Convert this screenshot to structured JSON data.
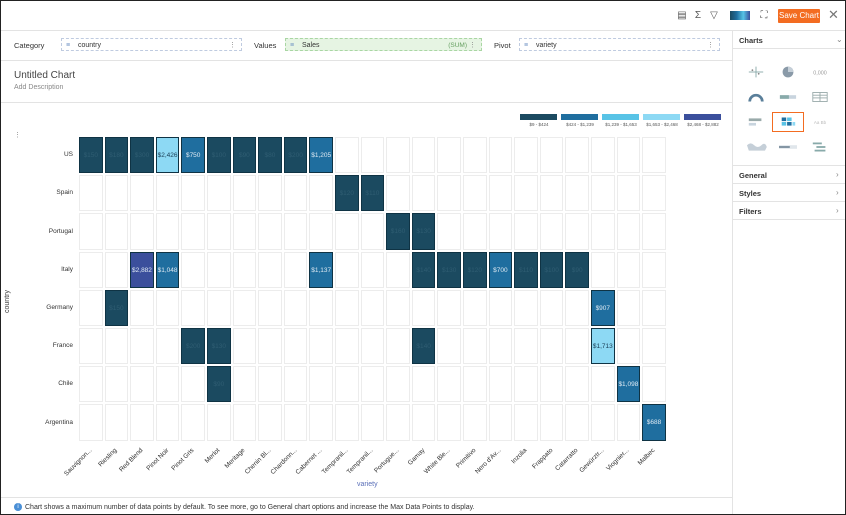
{
  "toolbar": {
    "save_label": "Save Chart",
    "icons": [
      "table-icon",
      "sum-icon",
      "filter-icon",
      "color-palette-icon",
      "fullscreen-icon",
      "close-icon"
    ]
  },
  "fields": {
    "category_label": "Category",
    "category_value": "country",
    "values_label": "Values",
    "values_value": "Sales",
    "values_agg": "(SUM)",
    "pivot_label": "Pivot",
    "pivot_value": "variety"
  },
  "chart_header": {
    "title": "Untitled Chart",
    "description": "Add Description"
  },
  "legend": [
    {
      "range": "$9 - $424",
      "color": "#1b4a60"
    },
    {
      "range": "$424 - $1,239",
      "color": "#1f6e9f"
    },
    {
      "range": "$1,239 - $1,653",
      "color": "#58c3e6"
    },
    {
      "range": "$1,653 - $2,468",
      "color": "#8dd9f4"
    },
    {
      "range": "$2,468 - $2,882",
      "color": "#3b4f9c"
    }
  ],
  "chart_data": {
    "type": "heatmap",
    "y_axis_title": "country",
    "x_axis_title": "variety",
    "rows": [
      "US",
      "Spain",
      "Portugal",
      "Italy",
      "Germany",
      "France",
      "Chile",
      "Argentina"
    ],
    "columns": [
      "Sauvignon...",
      "Riesling",
      "Red Blend",
      "Pinot Noir",
      "Pinot Gris",
      "Merlot",
      "Meritage",
      "Chenin Bl...",
      "Chardonn...",
      "Cabernet ...",
      "Tempranil...",
      "Tempranil...",
      "Portugue...",
      "Gamay",
      "White Ble...",
      "Primitivo",
      "Nero d'Av...",
      "Inzolia",
      "Frappato",
      "Catarratto",
      "Gewürztr...",
      "Viognier...",
      "Malbec"
    ],
    "cells": [
      {
        "row": 0,
        "col": 0,
        "value": 150,
        "label": "$150"
      },
      {
        "row": 0,
        "col": 1,
        "value": 180,
        "label": "$180"
      },
      {
        "row": 0,
        "col": 2,
        "value": 300,
        "label": "$300"
      },
      {
        "row": 0,
        "col": 3,
        "value": 2426,
        "label": "$2,426"
      },
      {
        "row": 0,
        "col": 4,
        "value": 750,
        "label": "$750"
      },
      {
        "row": 0,
        "col": 5,
        "value": 100,
        "label": "$100"
      },
      {
        "row": 0,
        "col": 6,
        "value": 90,
        "label": "$90"
      },
      {
        "row": 0,
        "col": 7,
        "value": 80,
        "label": "$80"
      },
      {
        "row": 0,
        "col": 8,
        "value": 200,
        "label": "$200"
      },
      {
        "row": 0,
        "col": 9,
        "value": 1205,
        "label": "$1,205"
      },
      {
        "row": 1,
        "col": 10,
        "value": 120,
        "label": "$120"
      },
      {
        "row": 1,
        "col": 11,
        "value": 110,
        "label": "$110"
      },
      {
        "row": 2,
        "col": 12,
        "value": 160,
        "label": "$160"
      },
      {
        "row": 2,
        "col": 13,
        "value": 130,
        "label": "$130"
      },
      {
        "row": 3,
        "col": 2,
        "value": 2882,
        "label": "$2,882"
      },
      {
        "row": 3,
        "col": 3,
        "value": 1048,
        "label": "$1,048"
      },
      {
        "row": 3,
        "col": 9,
        "value": 1137,
        "label": "$1,137"
      },
      {
        "row": 3,
        "col": 13,
        "value": 140,
        "label": "$140"
      },
      {
        "row": 3,
        "col": 14,
        "value": 130,
        "label": "$130"
      },
      {
        "row": 3,
        "col": 15,
        "value": 120,
        "label": "$120"
      },
      {
        "row": 3,
        "col": 16,
        "value": 700,
        "label": "$700"
      },
      {
        "row": 3,
        "col": 17,
        "value": 110,
        "label": "$110"
      },
      {
        "row": 3,
        "col": 18,
        "value": 100,
        "label": "$100"
      },
      {
        "row": 3,
        "col": 19,
        "value": 90,
        "label": "$90"
      },
      {
        "row": 4,
        "col": 1,
        "value": 150,
        "label": "$150"
      },
      {
        "row": 4,
        "col": 20,
        "value": 907,
        "label": "$907"
      },
      {
        "row": 5,
        "col": 4,
        "value": 200,
        "label": "$200"
      },
      {
        "row": 5,
        "col": 5,
        "value": 130,
        "label": "$130"
      },
      {
        "row": 5,
        "col": 13,
        "value": 140,
        "label": "$140"
      },
      {
        "row": 5,
        "col": 20,
        "value": 1713,
        "label": "$1,713"
      },
      {
        "row": 6,
        "col": 5,
        "value": 90,
        "label": "$90"
      },
      {
        "row": 6,
        "col": 21,
        "value": 1098,
        "label": "$1,098"
      },
      {
        "row": 7,
        "col": 22,
        "value": 688,
        "label": "$688"
      }
    ]
  },
  "footer": {
    "note": "Chart shows a maximum number of data points by default. To see more, go to General chart options and increase the Max Data Points to display."
  },
  "side_panel": {
    "charts_label": "Charts",
    "sections": [
      "General",
      "Styles",
      "Filters"
    ]
  }
}
